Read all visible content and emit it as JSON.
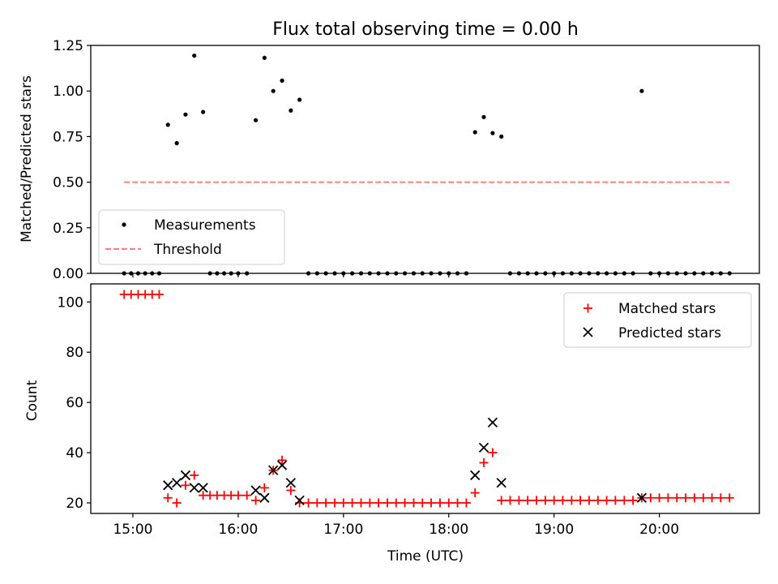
{
  "chart_data": [
    {
      "type": "scatter",
      "title": "Flux total observing time = 0.00 h",
      "ylabel": "Matched/Predicted stars",
      "xlabel": "",
      "xlim": [
        14.6,
        20.95
      ],
      "ylim": [
        0,
        1.25
      ],
      "yticks": [
        0,
        0.25,
        0.5,
        0.75,
        1.0,
        1.25
      ],
      "ytick_labels": [
        "0.00",
        "0.25",
        "0.50",
        "0.75",
        "1.00",
        "1.25"
      ],
      "legend": {
        "position": "lower-left",
        "entries": [
          "Measurements",
          "Threshold"
        ]
      },
      "series": [
        {
          "name": "Measurements",
          "marker": "dot",
          "color": "#000000",
          "points": [
            [
              14.917,
              0
            ],
            [
              14.983,
              0
            ],
            [
              15.05,
              0
            ],
            [
              15.117,
              0
            ],
            [
              15.183,
              0
            ],
            [
              15.25,
              0
            ],
            [
              15.333,
              0.815
            ],
            [
              15.417,
              0.714
            ],
            [
              15.5,
              0.871
            ],
            [
              15.583,
              1.194
            ],
            [
              15.667,
              0.885
            ],
            [
              15.733,
              0
            ],
            [
              15.8,
              0
            ],
            [
              15.867,
              0
            ],
            [
              15.933,
              0
            ],
            [
              16.0,
              0
            ],
            [
              16.083,
              0
            ],
            [
              16.167,
              0.84
            ],
            [
              16.25,
              1.182
            ],
            [
              16.333,
              1.0
            ],
            [
              16.417,
              1.057
            ],
            [
              16.5,
              0.893
            ],
            [
              16.583,
              0.952
            ],
            [
              16.667,
              0
            ],
            [
              16.75,
              0
            ],
            [
              16.833,
              0
            ],
            [
              16.917,
              0
            ],
            [
              17.0,
              0
            ],
            [
              17.083,
              0
            ],
            [
              17.167,
              0
            ],
            [
              17.25,
              0
            ],
            [
              17.333,
              0
            ],
            [
              17.417,
              0
            ],
            [
              17.5,
              0
            ],
            [
              17.583,
              0
            ],
            [
              17.667,
              0
            ],
            [
              17.75,
              0
            ],
            [
              17.833,
              0
            ],
            [
              17.917,
              0
            ],
            [
              18.0,
              0
            ],
            [
              18.083,
              0
            ],
            [
              18.167,
              0
            ],
            [
              18.25,
              0.774
            ],
            [
              18.333,
              0.857
            ],
            [
              18.417,
              0.769
            ],
            [
              18.5,
              0.75
            ],
            [
              18.583,
              0
            ],
            [
              18.667,
              0
            ],
            [
              18.75,
              0
            ],
            [
              18.833,
              0
            ],
            [
              18.917,
              0
            ],
            [
              19.0,
              0
            ],
            [
              19.083,
              0
            ],
            [
              19.167,
              0
            ],
            [
              19.25,
              0
            ],
            [
              19.333,
              0
            ],
            [
              19.417,
              0
            ],
            [
              19.5,
              0
            ],
            [
              19.583,
              0
            ],
            [
              19.667,
              0
            ],
            [
              19.75,
              0
            ],
            [
              19.833,
              1.0
            ],
            [
              19.917,
              0
            ],
            [
              20.0,
              0
            ],
            [
              20.083,
              0
            ],
            [
              20.167,
              0
            ],
            [
              20.25,
              0
            ],
            [
              20.333,
              0
            ],
            [
              20.417,
              0
            ],
            [
              20.5,
              0
            ],
            [
              20.583,
              0
            ],
            [
              20.667,
              0
            ]
          ]
        },
        {
          "name": "Threshold",
          "style": "dashed",
          "color": "#ff7f7f",
          "points": [
            [
              14.917,
              0.5
            ],
            [
              20.667,
              0.5
            ]
          ]
        }
      ]
    },
    {
      "type": "scatter",
      "title": "",
      "ylabel": "Count",
      "xlabel": "Time (UTC)",
      "xlim": [
        14.6,
        20.95
      ],
      "ylim": [
        15.8,
        107.2
      ],
      "yticks": [
        20,
        40,
        60,
        80,
        100
      ],
      "ytick_labels": [
        "20",
        "40",
        "60",
        "80",
        "100"
      ],
      "xticks": [
        15,
        16,
        17,
        18,
        19,
        20
      ],
      "xtick_labels": [
        "15:00",
        "16:00",
        "17:00",
        "18:00",
        "19:00",
        "20:00"
      ],
      "legend": {
        "position": "upper-right",
        "entries": [
          "Matched stars",
          "Predicted stars"
        ]
      },
      "series": [
        {
          "name": "Matched stars",
          "marker": "plus",
          "color": "#ff0000",
          "points": [
            [
              14.917,
              103
            ],
            [
              14.983,
              103
            ],
            [
              15.05,
              103
            ],
            [
              15.117,
              103
            ],
            [
              15.183,
              103
            ],
            [
              15.25,
              103
            ],
            [
              15.333,
              22
            ],
            [
              15.417,
              20
            ],
            [
              15.5,
              27
            ],
            [
              15.583,
              31
            ],
            [
              15.667,
              23
            ],
            [
              15.733,
              23
            ],
            [
              15.8,
              23
            ],
            [
              15.867,
              23
            ],
            [
              15.933,
              23
            ],
            [
              16.0,
              23
            ],
            [
              16.083,
              23
            ],
            [
              16.167,
              21
            ],
            [
              16.25,
              26
            ],
            [
              16.333,
              33
            ],
            [
              16.417,
              37
            ],
            [
              16.5,
              25
            ],
            [
              16.583,
              20
            ],
            [
              16.667,
              20
            ],
            [
              16.75,
              20
            ],
            [
              16.833,
              20
            ],
            [
              16.917,
              20
            ],
            [
              17.0,
              20
            ],
            [
              17.083,
              20
            ],
            [
              17.167,
              20
            ],
            [
              17.25,
              20
            ],
            [
              17.333,
              20
            ],
            [
              17.417,
              20
            ],
            [
              17.5,
              20
            ],
            [
              17.583,
              20
            ],
            [
              17.667,
              20
            ],
            [
              17.75,
              20
            ],
            [
              17.833,
              20
            ],
            [
              17.917,
              20
            ],
            [
              18.0,
              20
            ],
            [
              18.083,
              20
            ],
            [
              18.167,
              20
            ],
            [
              18.25,
              24
            ],
            [
              18.333,
              36
            ],
            [
              18.417,
              40
            ],
            [
              18.5,
              21
            ],
            [
              18.583,
              21
            ],
            [
              18.667,
              21
            ],
            [
              18.75,
              21
            ],
            [
              18.833,
              21
            ],
            [
              18.917,
              21
            ],
            [
              19.0,
              21
            ],
            [
              19.083,
              21
            ],
            [
              19.167,
              21
            ],
            [
              19.25,
              21
            ],
            [
              19.333,
              21
            ],
            [
              19.417,
              21
            ],
            [
              19.5,
              21
            ],
            [
              19.583,
              21
            ],
            [
              19.667,
              21
            ],
            [
              19.75,
              21
            ],
            [
              19.833,
              22
            ],
            [
              19.917,
              22
            ],
            [
              20.0,
              22
            ],
            [
              20.083,
              22
            ],
            [
              20.167,
              22
            ],
            [
              20.25,
              22
            ],
            [
              20.333,
              22
            ],
            [
              20.417,
              22
            ],
            [
              20.5,
              22
            ],
            [
              20.583,
              22
            ],
            [
              20.667,
              22
            ]
          ]
        },
        {
          "name": "Predicted stars",
          "marker": "x",
          "color": "#000000",
          "points": [
            [
              15.333,
              27
            ],
            [
              15.417,
              28
            ],
            [
              15.5,
              31
            ],
            [
              15.583,
              26
            ],
            [
              15.667,
              26
            ],
            [
              16.167,
              25
            ],
            [
              16.25,
              22
            ],
            [
              16.333,
              33
            ],
            [
              16.417,
              35
            ],
            [
              16.5,
              28
            ],
            [
              16.583,
              21
            ],
            [
              18.25,
              31
            ],
            [
              18.333,
              42
            ],
            [
              18.417,
              52
            ],
            [
              18.5,
              28
            ],
            [
              19.833,
              22
            ]
          ]
        }
      ]
    }
  ]
}
